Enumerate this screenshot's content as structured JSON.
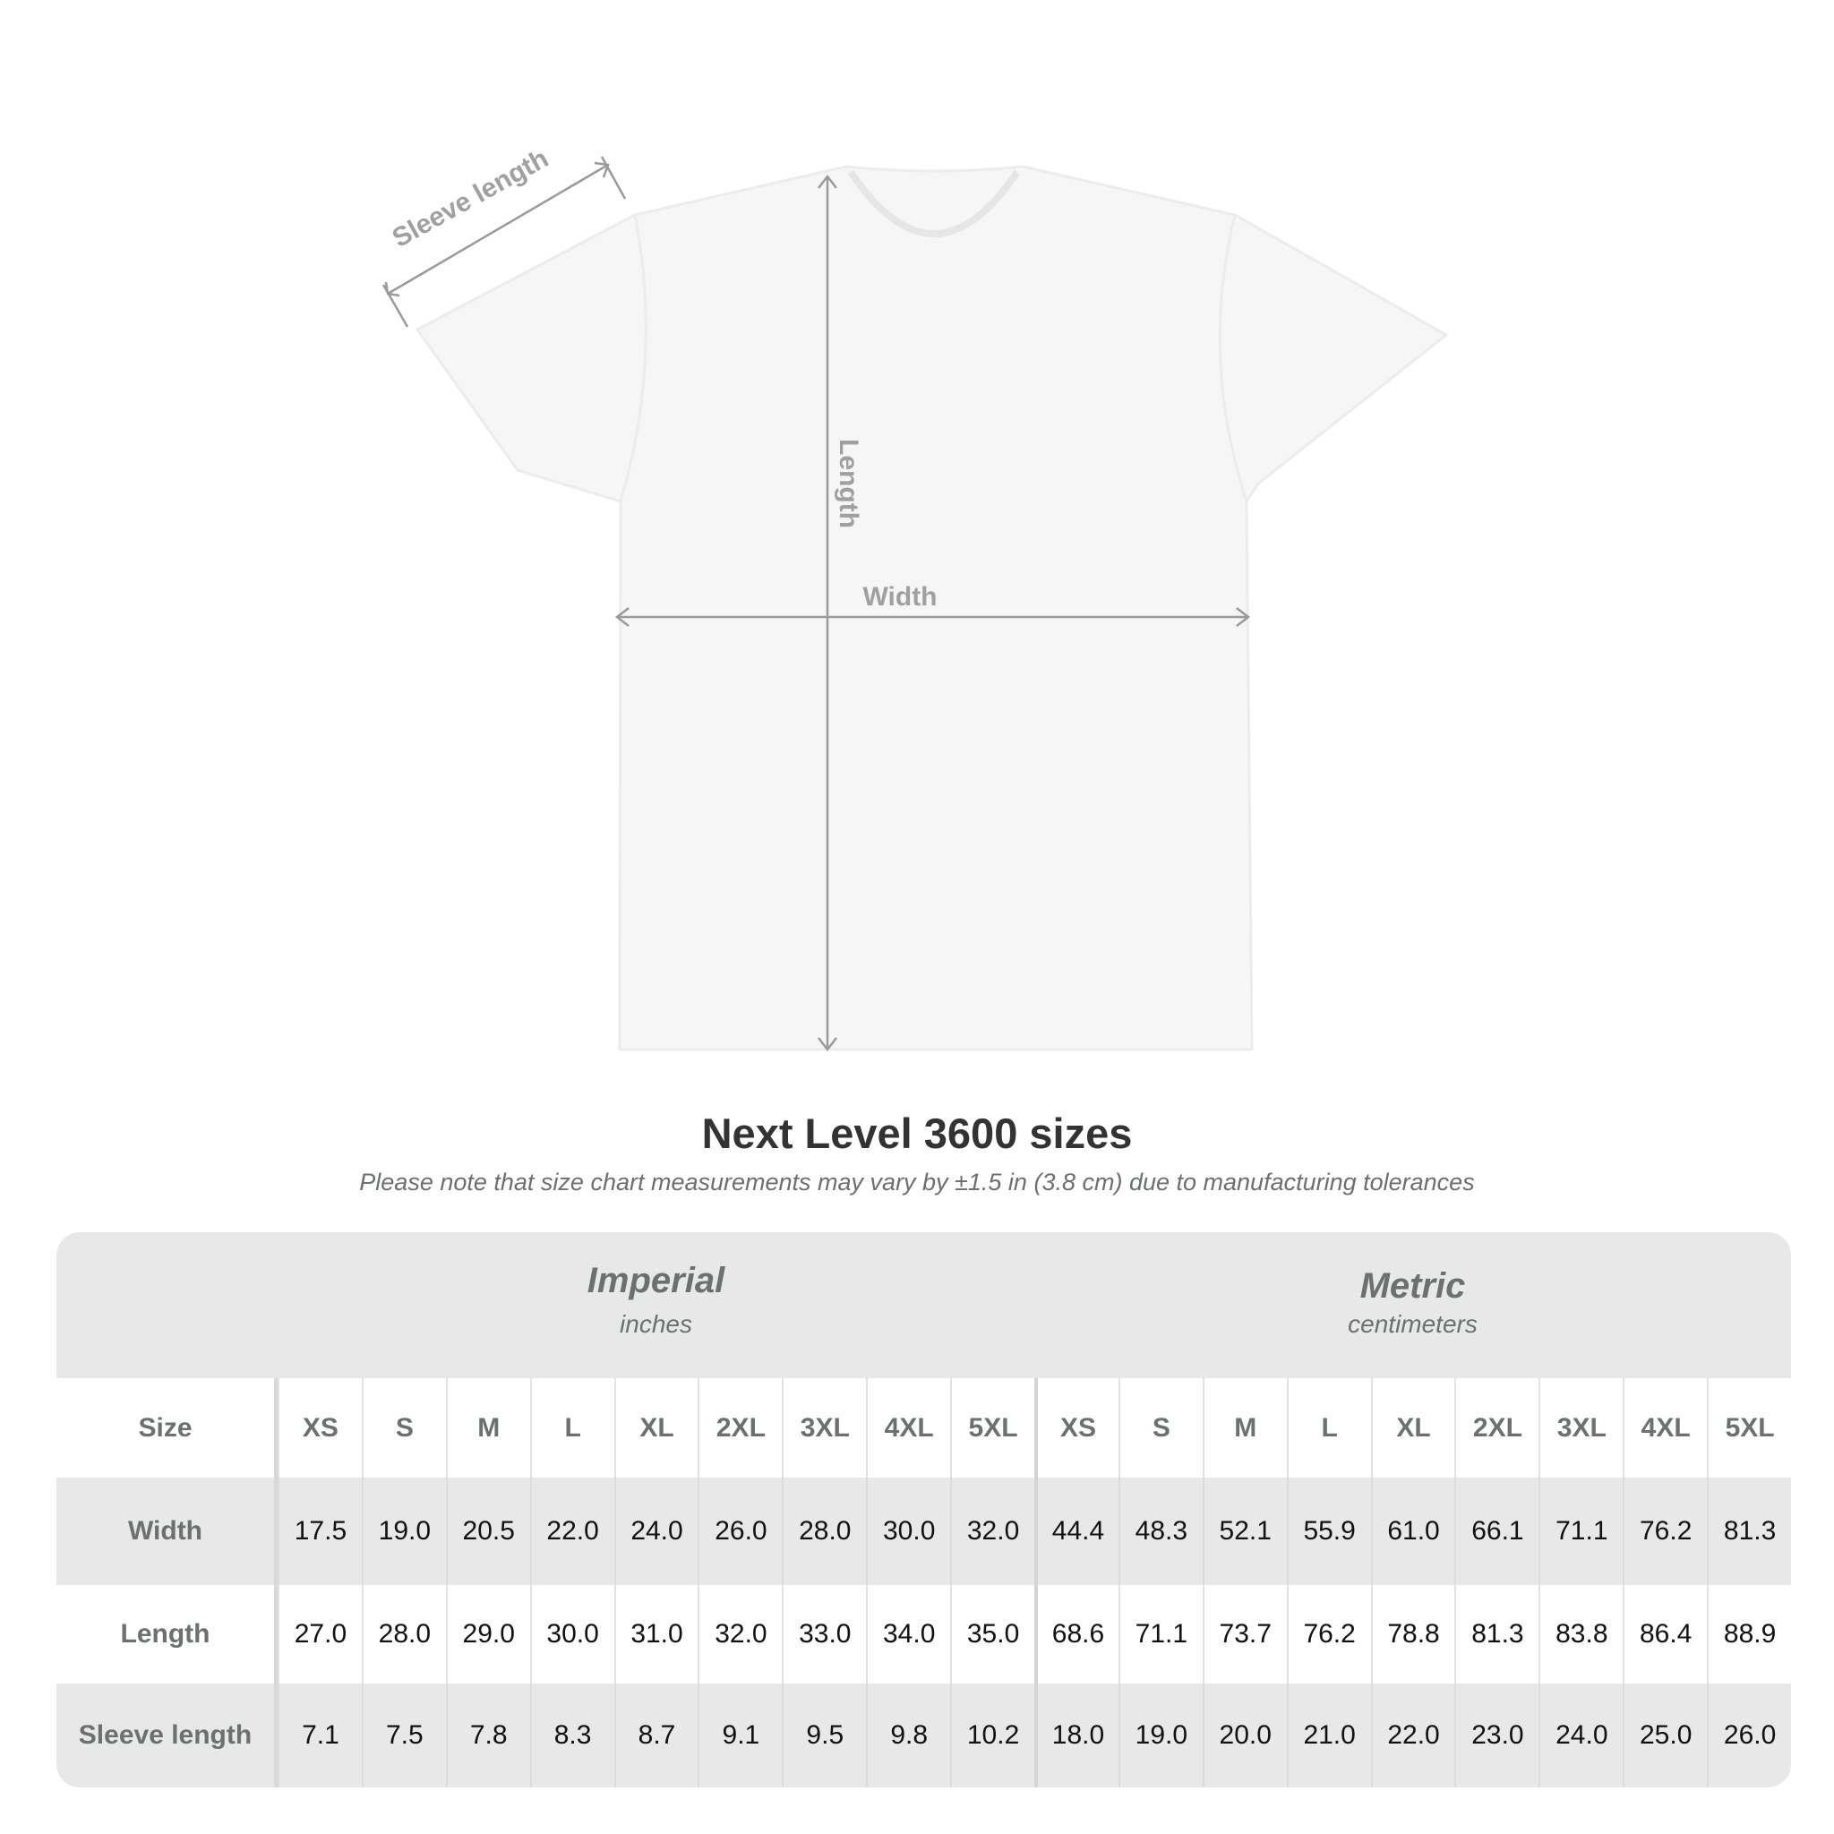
{
  "diagram": {
    "labels": {
      "sleeve": "Sleeve length",
      "length": "Length",
      "width": "Width"
    },
    "colors": {
      "shirt": "#f7f7f7",
      "arrow": "#9a9a9a"
    }
  },
  "title": "Next Level 3600 sizes",
  "subtitle": "Please note that size chart measurements may vary by ±1.5 in (3.8 cm) due to manufacturing tolerances",
  "table": {
    "imperial": {
      "name": "Imperial",
      "unit": "inches"
    },
    "metric": {
      "name": "Metric",
      "unit": "centimeters"
    },
    "size_label": "Size",
    "sizes": [
      "XS",
      "S",
      "M",
      "L",
      "XL",
      "2XL",
      "3XL",
      "4XL",
      "5XL"
    ],
    "rows": [
      {
        "label": "Width",
        "imperial": [
          "17.5",
          "19.0",
          "20.5",
          "22.0",
          "24.0",
          "26.0",
          "28.0",
          "30.0",
          "32.0"
        ],
        "metric": [
          "44.4",
          "48.3",
          "52.1",
          "55.9",
          "61.0",
          "66.1",
          "71.1",
          "76.2",
          "81.3"
        ]
      },
      {
        "label": "Length",
        "imperial": [
          "27.0",
          "28.0",
          "29.0",
          "30.0",
          "31.0",
          "32.0",
          "33.0",
          "34.0",
          "35.0"
        ],
        "metric": [
          "68.6",
          "71.1",
          "73.7",
          "76.2",
          "78.8",
          "81.3",
          "83.8",
          "86.4",
          "88.9"
        ]
      },
      {
        "label": "Sleeve length",
        "imperial": [
          "7.1",
          "7.5",
          "7.8",
          "8.3",
          "8.7",
          "9.1",
          "9.5",
          "9.8",
          "10.2"
        ],
        "metric": [
          "18.0",
          "19.0",
          "20.0",
          "21.0",
          "22.0",
          "23.0",
          "24.0",
          "25.0",
          "26.0"
        ]
      }
    ]
  }
}
